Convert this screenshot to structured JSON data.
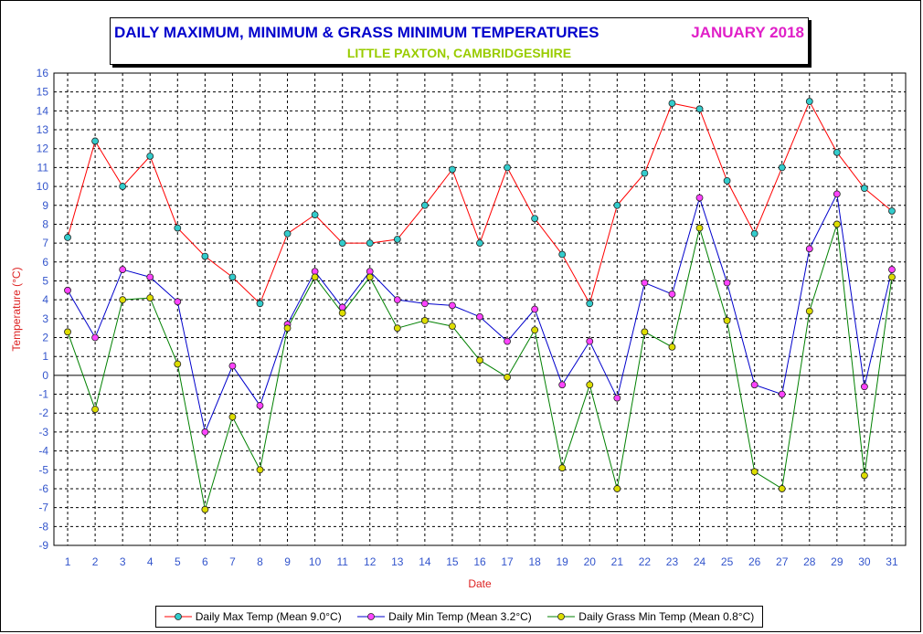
{
  "title": {
    "main": "DAILY MAXIMUM, MINIMUM & GRASS MINIMUM TEMPERATURES",
    "date": "JANUARY 2018",
    "subtitle": "LITTLE PAXTON, CAMBRIDGESHIRE"
  },
  "chart_data": {
    "type": "line",
    "xlabel": "Date",
    "ylabel": "Temperature (°C)",
    "ylim": [
      -9,
      16
    ],
    "grid": true,
    "legend_position": "bottom",
    "x": [
      1,
      2,
      3,
      4,
      5,
      6,
      7,
      8,
      9,
      10,
      11,
      12,
      13,
      14,
      15,
      16,
      17,
      18,
      19,
      20,
      21,
      22,
      23,
      24,
      25,
      26,
      27,
      28,
      29,
      30,
      31
    ],
    "series": [
      {
        "name": "Daily Max Temp (Mean 9.0°C)",
        "line_color": "#ff0000",
        "marker_color": "#33cccc",
        "values": [
          7.3,
          12.4,
          10.0,
          11.6,
          7.8,
          6.3,
          5.2,
          3.8,
          7.5,
          8.5,
          7.0,
          7.0,
          7.2,
          9.0,
          10.9,
          7.0,
          11.0,
          8.3,
          6.4,
          3.8,
          9.0,
          10.7,
          14.4,
          14.1,
          10.3,
          7.5,
          11.0,
          14.5,
          11.8,
          9.9,
          8.7
        ]
      },
      {
        "name": "Daily Min Temp (Mean 3.2°C)",
        "line_color": "#0000cc",
        "marker_color": "#ff44ff",
        "values": [
          4.5,
          2.0,
          5.6,
          5.2,
          3.9,
          -3.0,
          0.5,
          -1.6,
          2.7,
          5.5,
          3.6,
          5.5,
          4.0,
          3.8,
          3.7,
          3.1,
          1.8,
          3.5,
          -0.5,
          1.8,
          -1.2,
          4.9,
          4.3,
          9.4,
          4.9,
          -0.5,
          -1.0,
          6.7,
          9.6,
          -0.6,
          5.6
        ]
      },
      {
        "name": "Daily Grass Min Temp (Mean 0.8°C)",
        "line_color": "#008000",
        "marker_color": "#dddd00",
        "values": [
          2.3,
          -1.8,
          4.0,
          4.1,
          0.6,
          -7.1,
          -2.2,
          -5.0,
          2.5,
          5.2,
          3.3,
          5.2,
          2.5,
          2.9,
          2.6,
          0.8,
          -0.1,
          2.4,
          -4.9,
          -0.5,
          -6.0,
          2.3,
          1.5,
          7.8,
          2.9,
          -5.1,
          -6.0,
          3.4,
          8.0,
          -5.3,
          5.2
        ]
      }
    ]
  }
}
